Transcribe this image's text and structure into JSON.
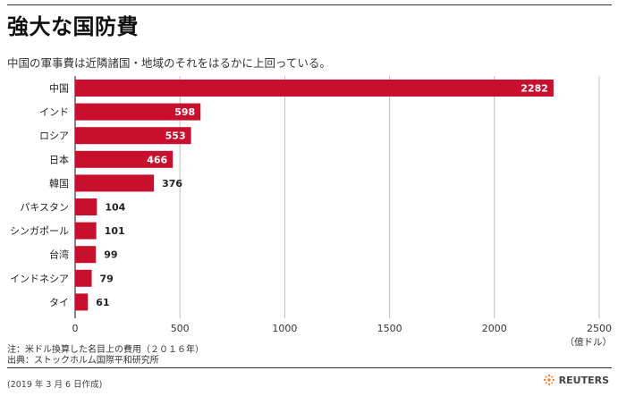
{
  "title": "強大な国防費",
  "subtitle": "中国の軍事費は近隣諸国・地域のそれをはるかに上回っている。",
  "chart_data": {
    "type": "bar",
    "orientation": "horizontal",
    "categories": [
      "中国",
      "インド",
      "ロシア",
      "日本",
      "韓国",
      "パキスタン",
      "シンガポール",
      "台湾",
      "インドネシア",
      "タイ"
    ],
    "values": [
      2282,
      598,
      553,
      466,
      376,
      104,
      101,
      99,
      79,
      61
    ],
    "x_ticks": [
      0,
      500,
      1000,
      1500,
      2000,
      2500
    ],
    "xlim": [
      0,
      2500
    ],
    "unit_label": "（億ドル）",
    "bar_color": "#c8102e",
    "grid": true
  },
  "notes": {
    "line1": "注：米ドル換算した名目上の費用（２０１６年）",
    "line2": "出典：ストックホルム国際平和研究所"
  },
  "footer": {
    "date": "(2019 年 3 月 6 日作成)",
    "brand": "REUTERS"
  }
}
